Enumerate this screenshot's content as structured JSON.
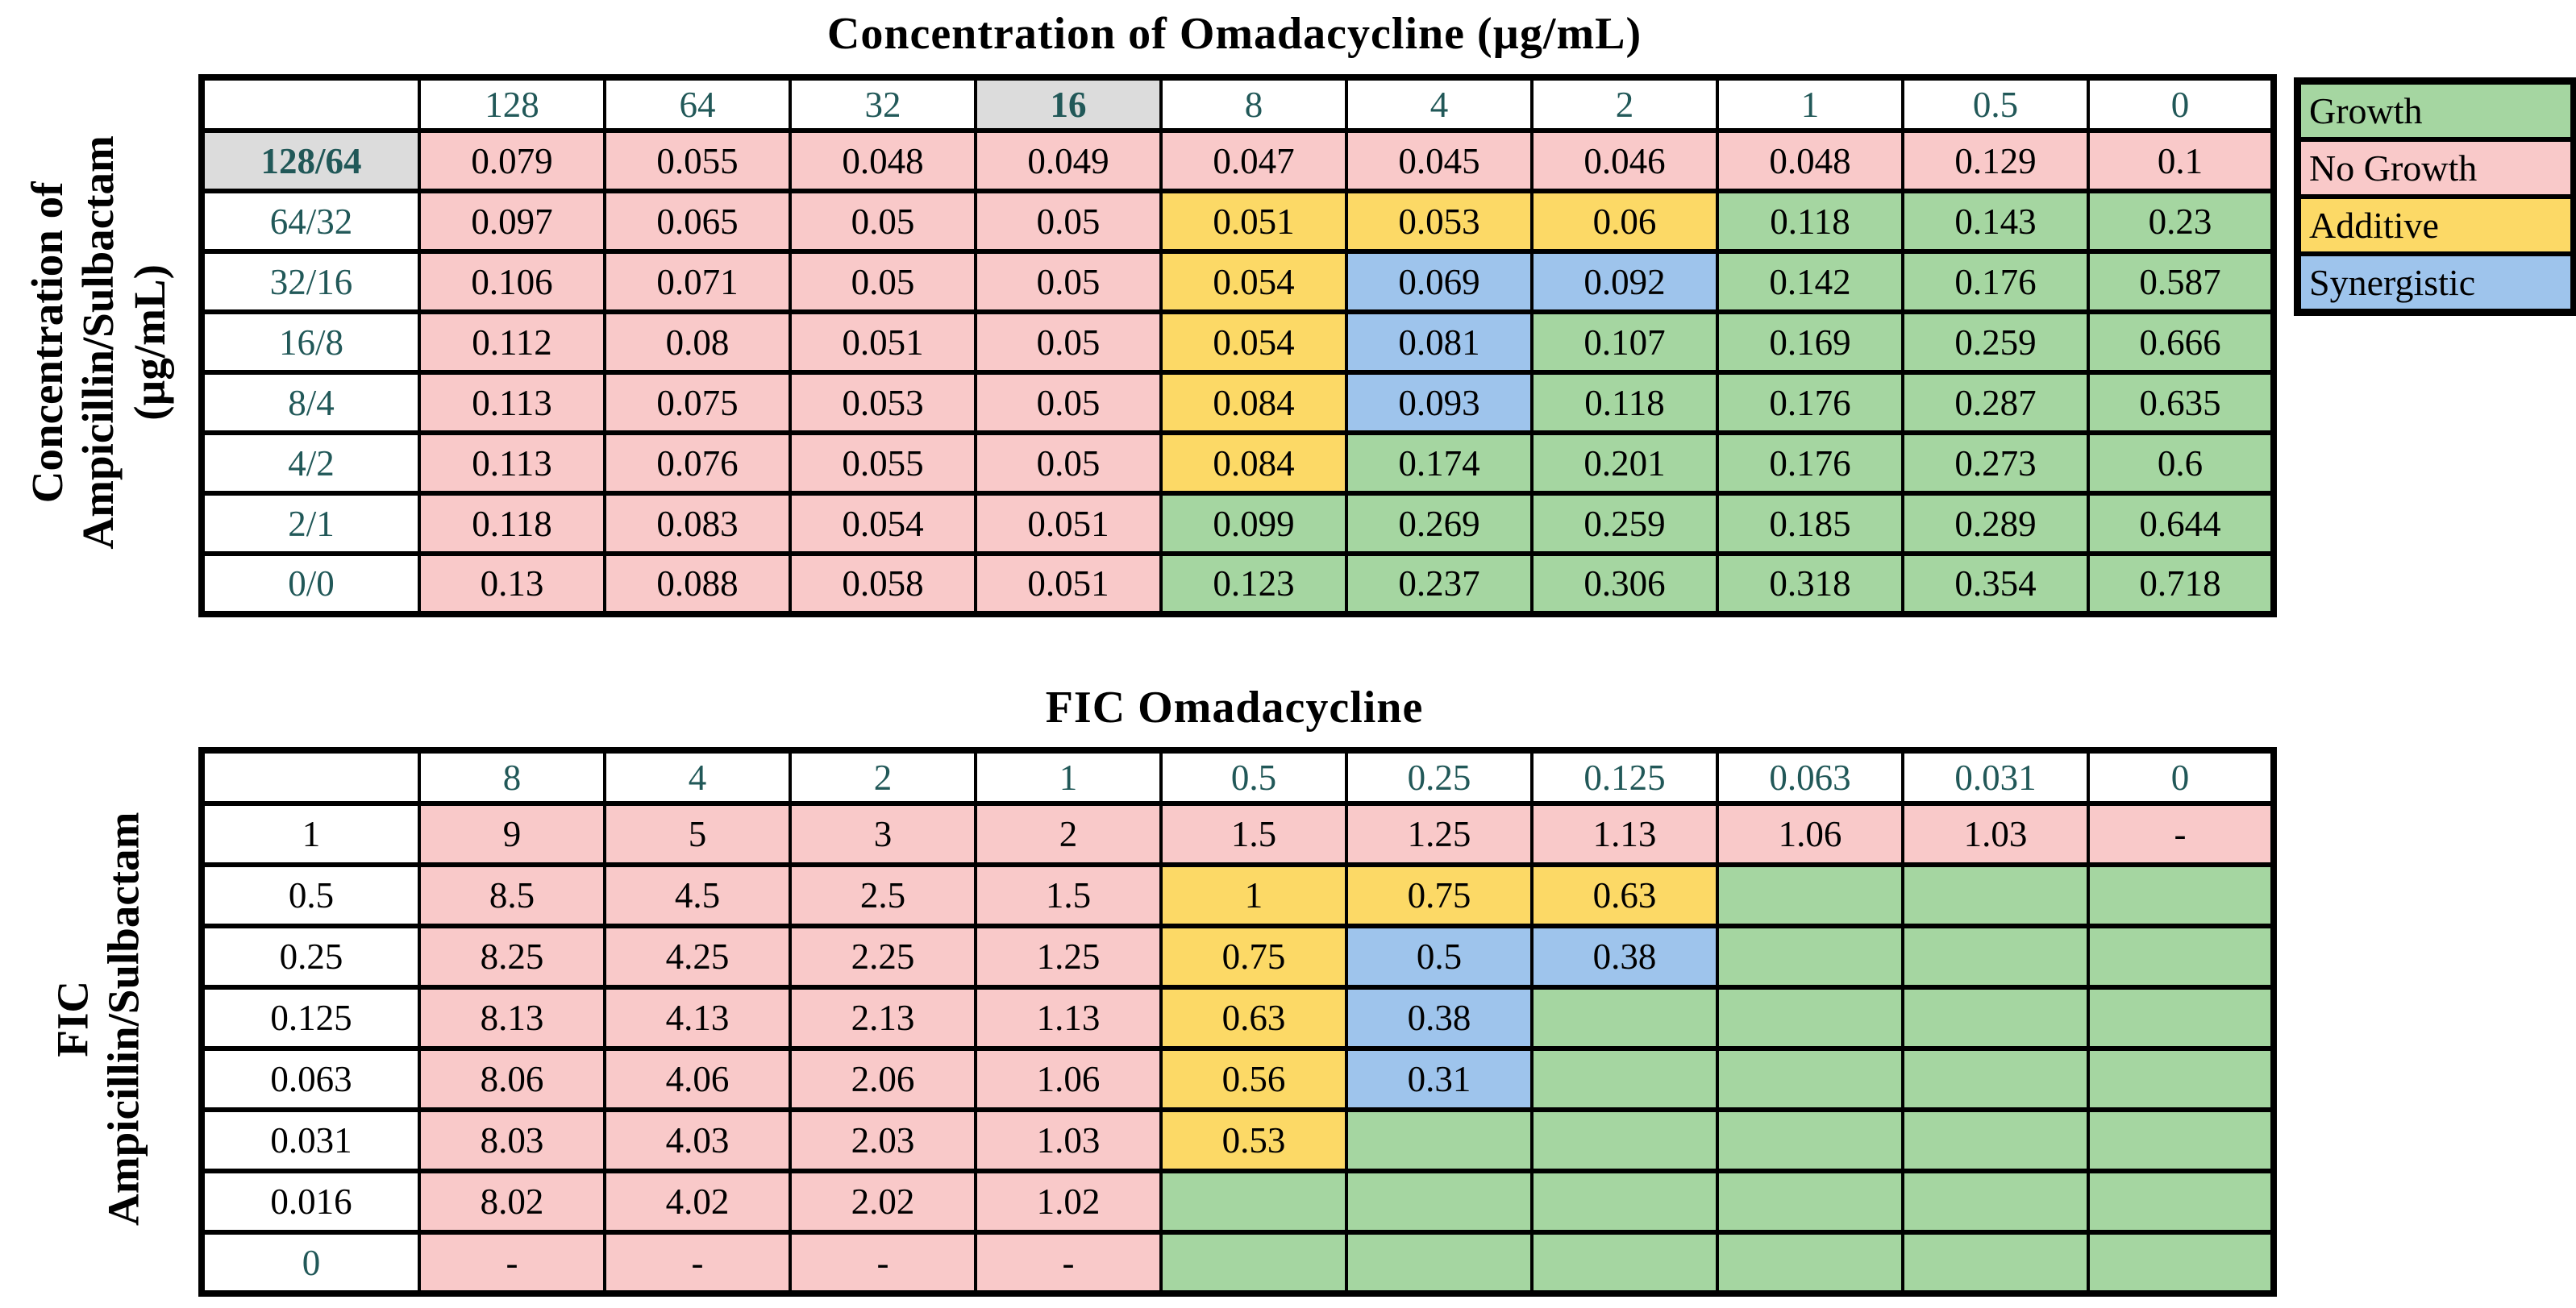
{
  "state_colors": {
    "growth": "#A5D6A1",
    "no_growth": "#F9C9C9",
    "additive": "#FCD966",
    "synergistic": "#9EC4EC"
  },
  "ui_colors": {
    "highlight_gray": "#DCDCDC",
    "header_text_teal": "#215858",
    "border_black": "#000000"
  },
  "legend": {
    "items": [
      {
        "label": "Growth",
        "state": "growth"
      },
      {
        "label": "No Growth",
        "state": "no_growth"
      },
      {
        "label": "Additive",
        "state": "additive"
      },
      {
        "label": "Synergistic",
        "state": "synergistic"
      }
    ]
  },
  "chart_data": [
    {
      "type": "heatmap",
      "title": "Concentration of Omadacycline (µg/mL)",
      "y_axis_label_lines": [
        "Concentration of",
        "Ampicillin/Sulbactam",
        "(µg/mL)"
      ],
      "col_headers": [
        "128",
        "64",
        "32",
        "16",
        "8",
        "4",
        "2",
        "1",
        "0.5",
        "0"
      ],
      "highlighted_col_header": "16",
      "rows": [
        {
          "label": "128/64",
          "label_highlighted": true,
          "label_teal": true,
          "values": [
            "0.079",
            "0.055",
            "0.048",
            "0.049",
            "0.047",
            "0.045",
            "0.046",
            "0.048",
            "0.129",
            "0.1"
          ],
          "states": [
            "no_growth",
            "no_growth",
            "no_growth",
            "no_growth",
            "no_growth",
            "no_growth",
            "no_growth",
            "no_growth",
            "no_growth",
            "no_growth"
          ]
        },
        {
          "label": "64/32",
          "label_highlighted": false,
          "label_teal": true,
          "values": [
            "0.097",
            "0.065",
            "0.05",
            "0.05",
            "0.051",
            "0.053",
            "0.06",
            "0.118",
            "0.143",
            "0.23"
          ],
          "states": [
            "no_growth",
            "no_growth",
            "no_growth",
            "no_growth",
            "additive",
            "additive",
            "additive",
            "growth",
            "growth",
            "growth"
          ]
        },
        {
          "label": "32/16",
          "label_highlighted": false,
          "label_teal": true,
          "values": [
            "0.106",
            "0.071",
            "0.05",
            "0.05",
            "0.054",
            "0.069",
            "0.092",
            "0.142",
            "0.176",
            "0.587"
          ],
          "states": [
            "no_growth",
            "no_growth",
            "no_growth",
            "no_growth",
            "additive",
            "synergistic",
            "synergistic",
            "growth",
            "growth",
            "growth"
          ]
        },
        {
          "label": "16/8",
          "label_highlighted": false,
          "label_teal": true,
          "values": [
            "0.112",
            "0.08",
            "0.051",
            "0.05",
            "0.054",
            "0.081",
            "0.107",
            "0.169",
            "0.259",
            "0.666"
          ],
          "states": [
            "no_growth",
            "no_growth",
            "no_growth",
            "no_growth",
            "additive",
            "synergistic",
            "growth",
            "growth",
            "growth",
            "growth"
          ]
        },
        {
          "label": "8/4",
          "label_highlighted": false,
          "label_teal": true,
          "values": [
            "0.113",
            "0.075",
            "0.053",
            "0.05",
            "0.084",
            "0.093",
            "0.118",
            "0.176",
            "0.287",
            "0.635"
          ],
          "states": [
            "no_growth",
            "no_growth",
            "no_growth",
            "no_growth",
            "additive",
            "synergistic",
            "growth",
            "growth",
            "growth",
            "growth"
          ]
        },
        {
          "label": "4/2",
          "label_highlighted": false,
          "label_teal": true,
          "values": [
            "0.113",
            "0.076",
            "0.055",
            "0.05",
            "0.084",
            "0.174",
            "0.201",
            "0.176",
            "0.273",
            "0.6"
          ],
          "states": [
            "no_growth",
            "no_growth",
            "no_growth",
            "no_growth",
            "additive",
            "growth",
            "growth",
            "growth",
            "growth",
            "growth"
          ]
        },
        {
          "label": "2/1",
          "label_highlighted": false,
          "label_teal": true,
          "values": [
            "0.118",
            "0.083",
            "0.054",
            "0.051",
            "0.099",
            "0.269",
            "0.259",
            "0.185",
            "0.289",
            "0.644"
          ],
          "states": [
            "no_growth",
            "no_growth",
            "no_growth",
            "no_growth",
            "growth",
            "growth",
            "growth",
            "growth",
            "growth",
            "growth"
          ]
        },
        {
          "label": "0/0",
          "label_highlighted": false,
          "label_teal": true,
          "values": [
            "0.13",
            "0.088",
            "0.058",
            "0.051",
            "0.123",
            "0.237",
            "0.306",
            "0.318",
            "0.354",
            "0.718"
          ],
          "states": [
            "no_growth",
            "no_growth",
            "no_growth",
            "no_growth",
            "growth",
            "growth",
            "growth",
            "growth",
            "growth",
            "growth"
          ]
        }
      ]
    },
    {
      "type": "heatmap",
      "title": "FIC Omadacycline",
      "y_axis_label_lines": [
        "FIC",
        "Ampicillin/Sulbactam"
      ],
      "col_headers": [
        "8",
        "4",
        "2",
        "1",
        "0.5",
        "0.25",
        "0.125",
        "0.063",
        "0.031",
        "0"
      ],
      "highlighted_col_header": null,
      "rows": [
        {
          "label": "1",
          "label_highlighted": false,
          "label_teal": false,
          "values": [
            "9",
            "5",
            "3",
            "2",
            "1.5",
            "1.25",
            "1.13",
            "1.06",
            "1.03",
            "-"
          ],
          "states": [
            "no_growth",
            "no_growth",
            "no_growth",
            "no_growth",
            "no_growth",
            "no_growth",
            "no_growth",
            "no_growth",
            "no_growth",
            "no_growth"
          ]
        },
        {
          "label": "0.5",
          "label_highlighted": false,
          "label_teal": false,
          "values": [
            "8.5",
            "4.5",
            "2.5",
            "1.5",
            "1",
            "0.75",
            "0.63",
            "",
            "",
            ""
          ],
          "states": [
            "no_growth",
            "no_growth",
            "no_growth",
            "no_growth",
            "additive",
            "additive",
            "additive",
            "growth",
            "growth",
            "growth"
          ]
        },
        {
          "label": "0.25",
          "label_highlighted": false,
          "label_teal": false,
          "values": [
            "8.25",
            "4.25",
            "2.25",
            "1.25",
            "0.75",
            "0.5",
            "0.38",
            "",
            "",
            ""
          ],
          "states": [
            "no_growth",
            "no_growth",
            "no_growth",
            "no_growth",
            "additive",
            "synergistic",
            "synergistic",
            "growth",
            "growth",
            "growth"
          ]
        },
        {
          "label": "0.125",
          "label_highlighted": false,
          "label_teal": false,
          "values": [
            "8.13",
            "4.13",
            "2.13",
            "1.13",
            "0.63",
            "0.38",
            "",
            "",
            "",
            ""
          ],
          "states": [
            "no_growth",
            "no_growth",
            "no_growth",
            "no_growth",
            "additive",
            "synergistic",
            "growth",
            "growth",
            "growth",
            "growth"
          ]
        },
        {
          "label": "0.063",
          "label_highlighted": false,
          "label_teal": false,
          "values": [
            "8.06",
            "4.06",
            "2.06",
            "1.06",
            "0.56",
            "0.31",
            "",
            "",
            "",
            ""
          ],
          "states": [
            "no_growth",
            "no_growth",
            "no_growth",
            "no_growth",
            "additive",
            "synergistic",
            "growth",
            "growth",
            "growth",
            "growth"
          ]
        },
        {
          "label": "0.031",
          "label_highlighted": false,
          "label_teal": false,
          "values": [
            "8.03",
            "4.03",
            "2.03",
            "1.03",
            "0.53",
            "",
            "",
            "",
            "",
            ""
          ],
          "states": [
            "no_growth",
            "no_growth",
            "no_growth",
            "no_growth",
            "additive",
            "growth",
            "growth",
            "growth",
            "growth",
            "growth"
          ]
        },
        {
          "label": "0.016",
          "label_highlighted": false,
          "label_teal": false,
          "values": [
            "8.02",
            "4.02",
            "2.02",
            "1.02",
            "",
            "",
            "",
            "",
            "",
            ""
          ],
          "states": [
            "no_growth",
            "no_growth",
            "no_growth",
            "no_growth",
            "growth",
            "growth",
            "growth",
            "growth",
            "growth",
            "growth"
          ]
        },
        {
          "label": "0",
          "label_highlighted": false,
          "label_teal": true,
          "values": [
            "-",
            "-",
            "-",
            "-",
            "",
            "",
            "",
            "",
            "",
            ""
          ],
          "states": [
            "no_growth",
            "no_growth",
            "no_growth",
            "no_growth",
            "growth",
            "growth",
            "growth",
            "growth",
            "growth",
            "growth"
          ]
        }
      ]
    }
  ]
}
